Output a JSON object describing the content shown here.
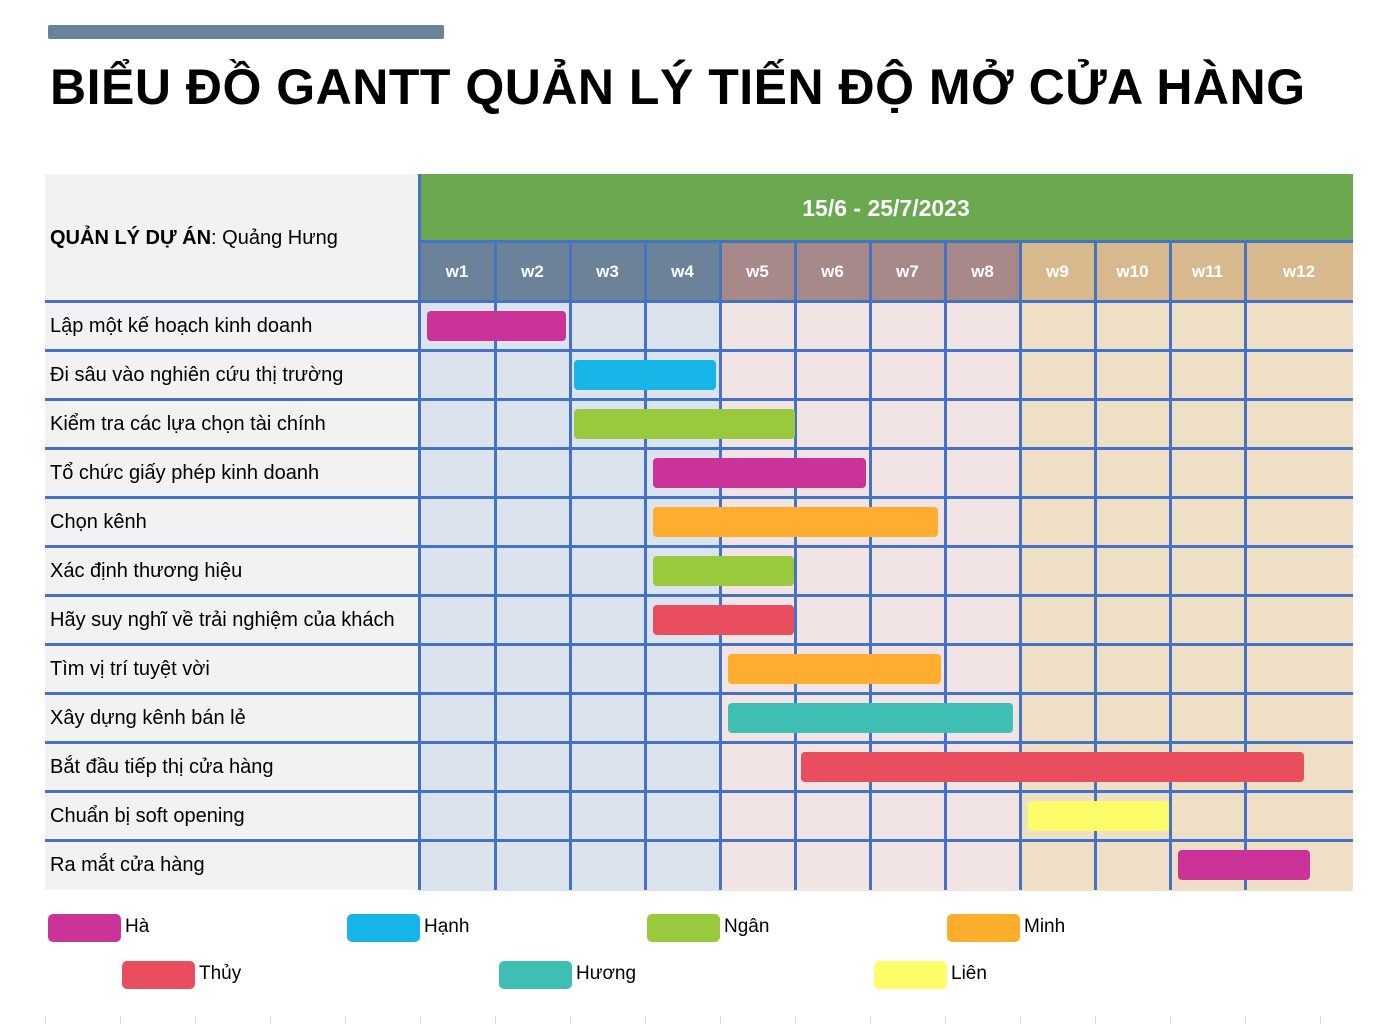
{
  "title": "BIỂU ĐỒ GANTT QUẢN LÝ TIẾN ĐỘ MỞ CỬA HÀNG",
  "manager": {
    "label": "QUẢN LÝ DỰ ÁN",
    "separator": ": ",
    "name": "Quảng Hưng"
  },
  "colors": {
    "header_green": "#6aa84f",
    "phase1_header": "#6b8299",
    "phase1_bg": "#dbe3ee",
    "phase2_header": "#a88989",
    "phase2_bg": "#f2e4e4",
    "phase3_header": "#d8b98e",
    "phase3_bg": "#efdfc7",
    "grid": "#4472c4"
  },
  "chart_data": {
    "type": "gantt",
    "date_range": "15/6 - 25/7/2023",
    "weeks": [
      "w1",
      "w2",
      "w3",
      "w4",
      "w5",
      "w6",
      "w7",
      "w8",
      "w9",
      "w10",
      "w11",
      "w12"
    ],
    "tasks": [
      {
        "name": "Lập một kế hoạch kinh doanh",
        "owner": "Hà",
        "start_week": 1.1,
        "end_week": 2.95
      },
      {
        "name": "Đi sâu vào nghiên cứu thị trường",
        "owner": "Hạnh",
        "start_week": 3.05,
        "end_week": 4.95
      },
      {
        "name": "Kiểm tra các lựa chọn tài chính",
        "owner": "Ngân",
        "start_week": 3.05,
        "end_week": 6.0
      },
      {
        "name": "Tổ chức giấy phép kinh doanh",
        "owner": "Hà",
        "start_week": 4.1,
        "end_week": 6.95
      },
      {
        "name": "Chọn kênh",
        "owner": "Minh",
        "start_week": 4.1,
        "end_week": 7.9
      },
      {
        "name": "Xác định thương hiệu",
        "owner": "Ngân",
        "start_week": 4.1,
        "end_week": 5.98
      },
      {
        "name": "Hãy suy nghĩ về trải nghiệm của khách",
        "owner": "Thủy",
        "start_week": 4.1,
        "end_week": 5.98
      },
      {
        "name": "Tìm vị trí tuyệt vời",
        "owner": "Minh",
        "start_week": 5.1,
        "end_week": 7.95
      },
      {
        "name": "Xây dựng kênh bán lẻ",
        "owner": "Hương",
        "start_week": 5.1,
        "end_week": 8.9
      },
      {
        "name": "Bắt đầu tiếp thị cửa hàng",
        "owner": "Thủy",
        "start_week": 6.08,
        "end_week": 12.55
      },
      {
        "name": "Chuẩn bị soft opening",
        "owner": "Liên",
        "start_week": 9.1,
        "end_week": 10.98
      },
      {
        "name": "Ra mắt cửa hàng",
        "owner": "Hà",
        "start_week": 11.1,
        "end_week": 12.6
      }
    ],
    "legend": [
      {
        "name": "Hà",
        "color": "#cc3399"
      },
      {
        "name": "Hạnh",
        "color": "#17b4e8"
      },
      {
        "name": "Ngân",
        "color": "#99c93c"
      },
      {
        "name": "Minh",
        "color": "#ffad2e"
      },
      {
        "name": "Thủy",
        "color": "#e94e5e"
      },
      {
        "name": "Hương",
        "color": "#3fbfb3"
      },
      {
        "name": "Liên",
        "color": "#fdfd6a"
      }
    ]
  }
}
